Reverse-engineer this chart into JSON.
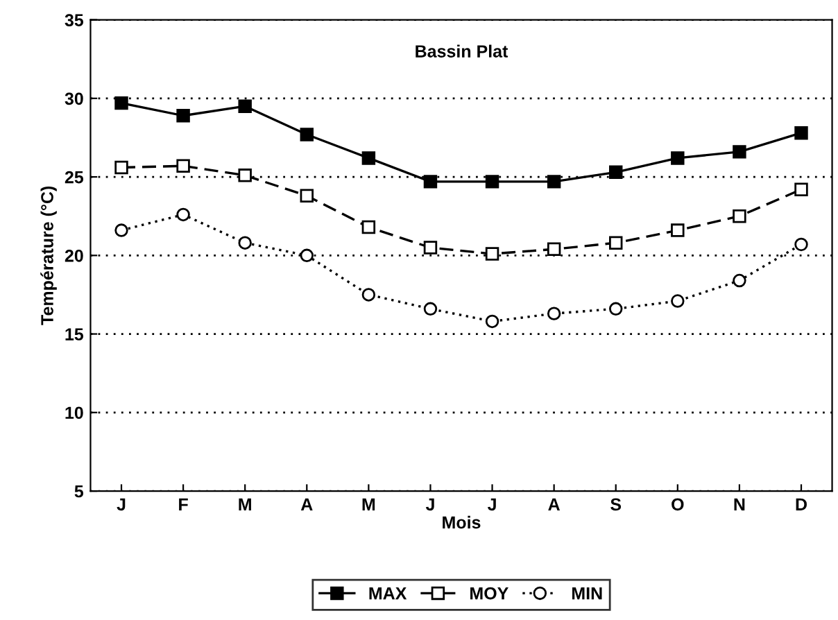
{
  "chart_data": {
    "type": "line",
    "title": "Bassin Plat",
    "xlabel": "Mois",
    "ylabel": "Température (°C)",
    "categories": [
      "J",
      "F",
      "M",
      "A",
      "M",
      "J",
      "J",
      "A",
      "S",
      "O",
      "N",
      "D"
    ],
    "series": [
      {
        "name": "MAX",
        "color": "#000000",
        "marker": "square",
        "line_style": "solid",
        "values": [
          29.7,
          28.9,
          29.5,
          27.7,
          26.2,
          24.7,
          24.7,
          24.7,
          25.3,
          26.2,
          26.6,
          27.8
        ]
      },
      {
        "name": "MOY",
        "color": "#000000",
        "marker": "square",
        "line_style": "dashed",
        "values": [
          25.6,
          25.7,
          25.1,
          23.8,
          21.8,
          20.5,
          20.1,
          20.4,
          20.8,
          21.6,
          22.5,
          24.2
        ]
      },
      {
        "name": "MIN",
        "color": "#000000",
        "marker": "circle",
        "line_style": "dotted",
        "values": [
          21.6,
          22.6,
          20.8,
          20.0,
          17.5,
          16.6,
          15.8,
          16.3,
          16.6,
          17.1,
          18.4,
          20.7
        ]
      }
    ],
    "ylim": [
      5,
      35
    ],
    "yticks": [
      5,
      10,
      15,
      20,
      25,
      30,
      35
    ],
    "grid": "y",
    "legend": "bottom"
  }
}
